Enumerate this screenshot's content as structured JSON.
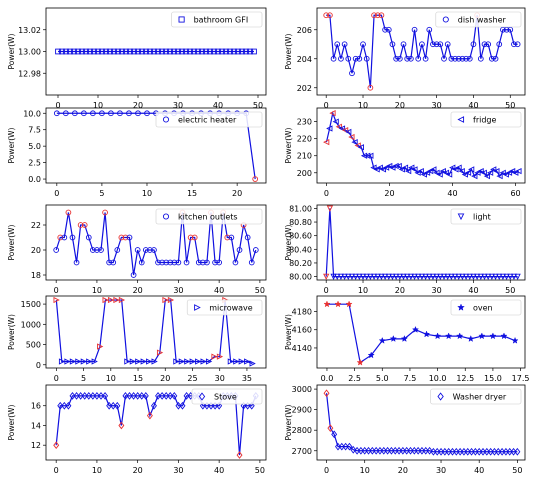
{
  "figure": {
    "ylabel": "Power(W)"
  },
  "chart_data": [
    {
      "type": "line",
      "legend": "bathroom GFI",
      "marker": "square",
      "legend_loc": "top-right",
      "ylabel": "Power(W)",
      "xlim": [
        -3,
        52
      ],
      "ylim": [
        12.96,
        13.04
      ],
      "xticks": [
        0,
        10,
        20,
        30,
        40,
        50
      ],
      "xtick_labels": [
        "0",
        "10",
        "20",
        "30",
        "40",
        "50"
      ],
      "yticks": [
        12.98,
        13.0,
        13.02
      ],
      "ytick_labels": [
        "12.98",
        "13.00",
        "13.02"
      ],
      "x": [
        0,
        1,
        2,
        3,
        4,
        5,
        6,
        7,
        8,
        9,
        10,
        11,
        12,
        13,
        14,
        15,
        16,
        17,
        18,
        19,
        20,
        21,
        22,
        23,
        24,
        25,
        26,
        27,
        28,
        29,
        30,
        31,
        32,
        33,
        34,
        35,
        36,
        37,
        38,
        39,
        40,
        41,
        42,
        43,
        44,
        45,
        46,
        47,
        48,
        49
      ],
      "y": [
        13,
        13,
        13,
        13,
        13,
        13,
        13,
        13,
        13,
        13,
        13,
        13,
        13,
        13,
        13,
        13,
        13,
        13,
        13,
        13,
        13,
        13,
        13,
        13,
        13,
        13,
        13,
        13,
        13,
        13,
        13,
        13,
        13,
        13,
        13,
        13,
        13,
        13,
        13,
        13,
        13,
        13,
        13,
        13,
        13,
        13,
        13,
        13,
        13,
        13
      ],
      "highlight": []
    },
    {
      "type": "line",
      "legend": "dish washer",
      "marker": "circle",
      "legend_loc": "top-right",
      "ylabel": "Power(W)",
      "xlim": [
        -2.5,
        54
      ],
      "ylim": [
        201.5,
        207.5
      ],
      "xticks": [
        0,
        10,
        20,
        30,
        40,
        50
      ],
      "xtick_labels": [
        "0",
        "10",
        "20",
        "30",
        "40",
        "50"
      ],
      "yticks": [
        202,
        204,
        206
      ],
      "ytick_labels": [
        "202",
        "204",
        "206"
      ],
      "x": [
        0,
        1,
        2,
        3,
        4,
        5,
        6,
        7,
        8,
        9,
        10,
        11,
        12,
        13,
        14,
        15,
        16,
        17,
        18,
        19,
        20,
        21,
        22,
        23,
        24,
        25,
        26,
        27,
        28,
        29,
        30,
        31,
        32,
        33,
        34,
        35,
        36,
        37,
        38,
        39,
        40,
        41,
        42,
        43,
        44,
        45,
        46,
        47,
        48,
        49,
        50,
        51,
        52
      ],
      "y": [
        207,
        207,
        204,
        205,
        204,
        205,
        204,
        203,
        204,
        204,
        205,
        204,
        202,
        207,
        207,
        207,
        206,
        206,
        205,
        204,
        204,
        205,
        204,
        204,
        206,
        204,
        205,
        204,
        206,
        205,
        205,
        205,
        204,
        205,
        204,
        204,
        204,
        204,
        204,
        204,
        205,
        207,
        204,
        205,
        205,
        204,
        204,
        205,
        206,
        206,
        206,
        205,
        205
      ],
      "highlight": [
        0,
        1,
        12,
        13,
        14,
        15,
        41
      ]
    },
    {
      "type": "line",
      "legend": "electric heater",
      "marker": "circle",
      "legend_loc": "top-right",
      "ylabel": "Power(W)",
      "xlim": [
        -1.2,
        23.2
      ],
      "ylim": [
        -0.6,
        10.8
      ],
      "xticks": [
        0,
        5,
        10,
        15,
        20
      ],
      "xtick_labels": [
        "0",
        "5",
        "10",
        "15",
        "20"
      ],
      "yticks": [
        0,
        2.5,
        5,
        7.5,
        10
      ],
      "ytick_labels": [
        "0.0",
        "2.5",
        "5.0",
        "7.5",
        "10.0"
      ],
      "x": [
        0,
        1,
        2,
        3,
        4,
        5,
        6,
        7,
        8,
        9,
        10,
        11,
        12,
        13,
        14,
        15,
        16,
        17,
        18,
        19,
        20,
        21,
        22
      ],
      "y": [
        10,
        10,
        10,
        10,
        10,
        10,
        10,
        10,
        10,
        10,
        10,
        10,
        10,
        10,
        10,
        10,
        10,
        10,
        10,
        10,
        10,
        10,
        0
      ],
      "highlight": [
        22
      ]
    },
    {
      "type": "line",
      "legend": "fridge",
      "marker": "triangle-left",
      "legend_loc": "top-right",
      "ylabel": "Power(W)",
      "xlim": [
        -3,
        63
      ],
      "ylim": [
        194,
        238
      ],
      "xticks": [
        0,
        20,
        40,
        60
      ],
      "xtick_labels": [
        "0",
        "20",
        "40",
        "60"
      ],
      "yticks": [
        200,
        210,
        220,
        230
      ],
      "ytick_labels": [
        "200",
        "210",
        "220",
        "230"
      ],
      "x": [
        0,
        1,
        2,
        3,
        4,
        5,
        6,
        7,
        8,
        9,
        10,
        11,
        12,
        13,
        14,
        15,
        16,
        17,
        18,
        19,
        20,
        21,
        22,
        23,
        24,
        25,
        26,
        27,
        28,
        29,
        30,
        31,
        32,
        33,
        34,
        35,
        36,
        37,
        38,
        39,
        40,
        41,
        42,
        43,
        44,
        45,
        46,
        47,
        48,
        49,
        50,
        51,
        52,
        53,
        54,
        55,
        56,
        57,
        58,
        59,
        60,
        61
      ],
      "y": [
        218,
        226,
        235,
        230,
        227,
        226,
        225,
        224,
        221,
        218,
        216,
        215,
        210,
        210,
        210,
        203,
        202,
        203,
        202,
        203,
        204,
        203,
        204,
        204,
        202,
        203,
        201,
        203,
        202,
        200,
        201,
        199,
        200,
        201,
        202,
        200,
        199,
        201,
        200,
        199,
        203,
        202,
        203,
        201,
        199,
        200,
        202,
        198,
        200,
        201,
        200,
        198,
        200,
        202,
        201,
        198,
        200,
        199,
        200,
        201,
        200,
        201
      ],
      "highlight": [
        0,
        2,
        4,
        6,
        8,
        10
      ]
    },
    {
      "type": "line",
      "legend": "kitchen outlets",
      "marker": "circle",
      "legend_loc": "top-right",
      "ylabel": "Power(W)",
      "xlim": [
        -2.5,
        51.5
      ],
      "ylim": [
        17.6,
        23.6
      ],
      "xticks": [
        0,
        10,
        20,
        30,
        40,
        50
      ],
      "xtick_labels": [
        "0",
        "10",
        "20",
        "30",
        "40",
        "50"
      ],
      "yticks": [
        18,
        20,
        22
      ],
      "ytick_labels": [
        "18",
        "20",
        "22"
      ],
      "x": [
        0,
        1,
        2,
        3,
        4,
        5,
        6,
        7,
        8,
        9,
        10,
        11,
        12,
        13,
        14,
        15,
        16,
        17,
        18,
        19,
        20,
        21,
        22,
        23,
        24,
        25,
        26,
        27,
        28,
        29,
        30,
        31,
        32,
        33,
        34,
        35,
        36,
        37,
        38,
        39,
        40,
        41,
        42,
        43,
        44,
        45,
        46,
        47,
        48,
        49
      ],
      "y": [
        20,
        21,
        21,
        23,
        21,
        19,
        22,
        22,
        21,
        20,
        20,
        20,
        23,
        19,
        19,
        20,
        21,
        21,
        21,
        18,
        20,
        19,
        20,
        20,
        20,
        19,
        19,
        19,
        19,
        19,
        19,
        23,
        19,
        21,
        21,
        19,
        19,
        19,
        23,
        19,
        19,
        23,
        21,
        21,
        19,
        20,
        22,
        21,
        19,
        20
      ],
      "highlight": [
        1,
        3,
        6,
        7,
        12,
        16,
        17,
        31,
        33,
        34,
        38,
        41,
        42,
        46
      ]
    },
    {
      "type": "line",
      "legend": "light",
      "marker": "triangle-down",
      "legend_loc": "top-right",
      "ylabel": "Power(W)",
      "xlim": [
        -2.5,
        54
      ],
      "ylim": [
        79.95,
        81.05
      ],
      "xticks": [
        0,
        10,
        20,
        30,
        40,
        50
      ],
      "xtick_labels": [
        "0",
        "10",
        "20",
        "30",
        "40",
        "50"
      ],
      "yticks": [
        80.0,
        80.2,
        80.4,
        80.6,
        80.8,
        81.0
      ],
      "ytick_labels": [
        "80.00",
        "80.20",
        "80.40",
        "80.60",
        "80.80",
        "81.00"
      ],
      "x": [
        0,
        1,
        2,
        3,
        4,
        5,
        6,
        7,
        8,
        9,
        10,
        11,
        12,
        13,
        14,
        15,
        16,
        17,
        18,
        19,
        20,
        21,
        22,
        23,
        24,
        25,
        26,
        27,
        28,
        29,
        30,
        31,
        32,
        33,
        34,
        35,
        36,
        37,
        38,
        39,
        40,
        41,
        42,
        43,
        44,
        45,
        46,
        47,
        48,
        49,
        50,
        51,
        52
      ],
      "y": [
        80,
        81,
        80,
        80,
        80,
        80,
        80,
        80,
        80,
        80,
        80,
        80,
        80,
        80,
        80,
        80,
        80,
        80,
        80,
        80,
        80,
        80,
        80,
        80,
        80,
        80,
        80,
        80,
        80,
        80,
        80,
        80,
        80,
        80,
        80,
        80,
        80,
        80,
        80,
        80,
        80,
        80,
        80,
        80,
        80,
        80,
        80,
        80,
        80,
        80,
        80,
        80,
        80
      ],
      "highlight": [
        0,
        1
      ]
    },
    {
      "type": "line",
      "legend": "microwave",
      "marker": "triangle-right",
      "legend_loc": "top-right",
      "ylabel": "Power(W)",
      "xlim": [
        -1.9,
        38.5
      ],
      "ylim": [
        -80,
        1700
      ],
      "xticks": [
        0,
        5,
        10,
        15,
        20,
        25,
        30,
        35
      ],
      "xtick_labels": [
        "0",
        "5",
        "10",
        "15",
        "20",
        "25",
        "30",
        "35"
      ],
      "yticks": [
        0,
        500,
        1000,
        1500
      ],
      "ytick_labels": [
        "0",
        "500",
        "1000",
        "1500"
      ],
      "x": [
        0,
        1,
        2,
        3,
        4,
        5,
        6,
        7,
        8,
        9,
        10,
        11,
        12,
        13,
        14,
        15,
        16,
        17,
        18,
        19,
        20,
        21,
        22,
        23,
        24,
        25,
        26,
        27,
        28,
        29,
        30,
        31,
        32,
        33,
        34,
        35,
        36
      ],
      "y": [
        1600,
        80,
        80,
        80,
        80,
        80,
        80,
        80,
        450,
        1600,
        1600,
        1600,
        1600,
        80,
        80,
        80,
        80,
        80,
        80,
        300,
        1600,
        1600,
        80,
        80,
        80,
        80,
        80,
        80,
        80,
        200,
        200,
        1600,
        80,
        80,
        80,
        80,
        30
      ],
      "highlight": [
        0,
        8,
        9,
        10,
        11,
        12,
        19,
        20,
        21,
        29,
        30,
        31
      ]
    },
    {
      "type": "line",
      "legend": "oven",
      "marker": "star",
      "legend_loc": "top-right",
      "ylabel": "Power(W)",
      "xlim": [
        -0.9,
        17.9
      ],
      "ylim": [
        4118,
        4197
      ],
      "xticks": [
        0,
        2.5,
        5,
        7.5,
        10,
        12.5,
        15,
        17.5
      ],
      "xtick_labels": [
        "0.0",
        "2.5",
        "5.0",
        "7.5",
        "10.0",
        "12.5",
        "15.0",
        "17.5"
      ],
      "yticks": [
        4140,
        4160,
        4180
      ],
      "ytick_labels": [
        "4140",
        "4160",
        "4180"
      ],
      "x": [
        0,
        1,
        2,
        3,
        4,
        5,
        6,
        7,
        8,
        9,
        10,
        11,
        12,
        13,
        14,
        15,
        16,
        17
      ],
      "y": [
        4188,
        4188,
        4188,
        4124,
        4132,
        4148,
        4150,
        4150,
        4160,
        4155,
        4153,
        4153,
        4153,
        4150,
        4153,
        4153,
        4153,
        4148
      ],
      "highlight": [
        0,
        1,
        2,
        3
      ]
    },
    {
      "type": "line",
      "legend": "Stove",
      "marker": "diamond",
      "legend_loc": "top-right",
      "ylabel": "Power(W)",
      "xlim": [
        -2.5,
        51.5
      ],
      "ylim": [
        10.5,
        18.1
      ],
      "xticks": [
        0,
        10,
        20,
        30,
        40,
        50
      ],
      "xtick_labels": [
        "0",
        "10",
        "20",
        "30",
        "40",
        "50"
      ],
      "yticks": [
        12,
        14,
        16
      ],
      "ytick_labels": [
        "12",
        "14",
        "16"
      ],
      "x": [
        0,
        1,
        2,
        3,
        4,
        5,
        6,
        7,
        8,
        9,
        10,
        11,
        12,
        13,
        14,
        15,
        16,
        17,
        18,
        19,
        20,
        21,
        22,
        23,
        24,
        25,
        26,
        27,
        28,
        29,
        30,
        31,
        32,
        33,
        34,
        35,
        36,
        37,
        38,
        39,
        40,
        41,
        42,
        43,
        44,
        45,
        46,
        47,
        48,
        49
      ],
      "y": [
        12,
        16,
        16,
        16,
        17,
        17,
        17,
        17,
        17,
        17,
        17,
        17,
        17,
        16,
        16,
        16,
        14,
        17,
        17,
        17,
        17,
        17,
        17,
        15,
        16,
        17,
        17,
        17,
        17,
        17,
        16,
        16,
        17,
        17,
        17,
        17,
        16,
        16,
        16,
        16,
        16,
        17,
        17,
        17,
        17,
        11,
        16,
        16,
        16,
        17
      ],
      "highlight": [
        0,
        16,
        23,
        45
      ]
    },
    {
      "type": "line",
      "legend": "Washer dryer",
      "marker": "diamond",
      "legend_loc": "top-right",
      "ylabel": "Power(W)",
      "xlim": [
        -2.5,
        52
      ],
      "ylim": [
        2655,
        3020
      ],
      "xticks": [
        0,
        10,
        20,
        30,
        40,
        50
      ],
      "xtick_labels": [
        "0",
        "10",
        "20",
        "30",
        "40",
        "50"
      ],
      "yticks": [
        2700,
        2800,
        2900,
        3000
      ],
      "ytick_labels": [
        "2700",
        "2800",
        "2900",
        "3000"
      ],
      "x": [
        0,
        1,
        2,
        3,
        4,
        5,
        6,
        7,
        8,
        9,
        10,
        11,
        12,
        13,
        14,
        15,
        16,
        17,
        18,
        19,
        20,
        21,
        22,
        23,
        24,
        25,
        26,
        27,
        28,
        29,
        30,
        31,
        32,
        33,
        34,
        35,
        36,
        37,
        38,
        39,
        40,
        41,
        42,
        43,
        44,
        45,
        46,
        47,
        48,
        49,
        50
      ],
      "y": [
        2980,
        2810,
        2780,
        2720,
        2720,
        2720,
        2720,
        2705,
        2700,
        2700,
        2700,
        2700,
        2700,
        2700,
        2700,
        2700,
        2700,
        2700,
        2700,
        2700,
        2700,
        2700,
        2700,
        2700,
        2700,
        2700,
        2700,
        2700,
        2695,
        2695,
        2695,
        2695,
        2695,
        2695,
        2695,
        2695,
        2695,
        2695,
        2695,
        2695,
        2695,
        2695,
        2695,
        2695,
        2695,
        2695,
        2695,
        2695,
        2695,
        2695,
        2695
      ],
      "highlight": [
        0,
        1
      ]
    }
  ]
}
